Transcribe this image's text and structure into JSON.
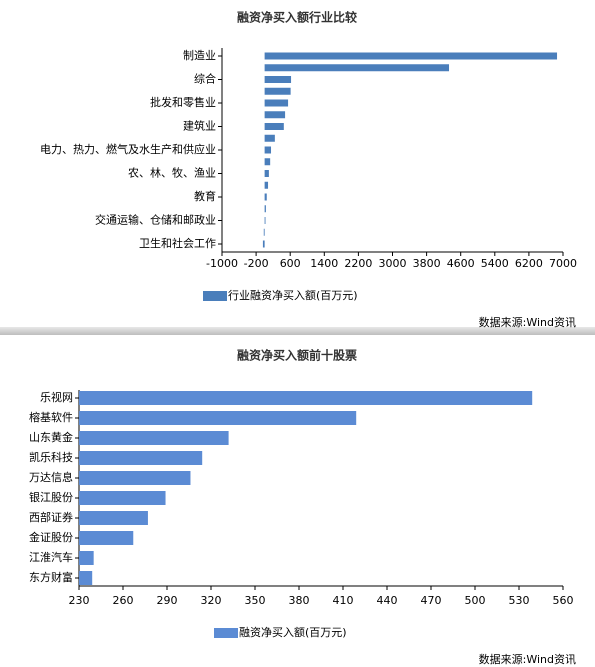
{
  "chart_data": [
    {
      "type": "hbar",
      "title": "融资净买入额行业比较",
      "categories": [
        "制造业",
        null,
        "综合",
        null,
        "批发和零售业",
        null,
        "建筑业",
        null,
        "电力、热力、燃气及水生产和供应业",
        null,
        "农、林、牧、渔业",
        null,
        "教育",
        null,
        "交通运输、仓储和邮政业",
        null,
        "卫生和社会工作"
      ],
      "series": [
        {
          "name": "行业融资净买入额(百万元)",
          "color": "#4a7ebb",
          "values": [
            6860,
            4326,
            620,
            610,
            550,
            480,
            450,
            240,
            150,
            130,
            100,
            80,
            50,
            30,
            20,
            -20,
            -40
          ]
        }
      ],
      "xlim": [
        -1000,
        7000
      ],
      "xticks": [
        -1000,
        -200,
        600,
        1400,
        2200,
        3000,
        3800,
        4600,
        5400,
        6200,
        7000
      ],
      "legend": "bottom",
      "source": "数据来源:Wind资讯"
    },
    {
      "type": "hbar",
      "title": "融资净买入额前十股票",
      "categories": [
        "乐视网",
        "榕基软件",
        "山东黄金",
        "凯乐科技",
        "万达信息",
        "银江股份",
        "西部证券",
        "金证股份",
        "江淮汽车",
        "东方财富"
      ],
      "series": [
        {
          "name": "融资净买入额(百万元)",
          "color": "#5b8bd4",
          "values": [
            539,
            419,
            332,
            314,
            306,
            289,
            277,
            267,
            240,
            239
          ]
        }
      ],
      "xlim": [
        230,
        560
      ],
      "xticks": [
        230,
        260,
        290,
        320,
        350,
        380,
        410,
        440,
        470,
        500,
        530,
        560
      ],
      "legend": "bottom",
      "source": "数据来源:Wind资讯"
    }
  ]
}
